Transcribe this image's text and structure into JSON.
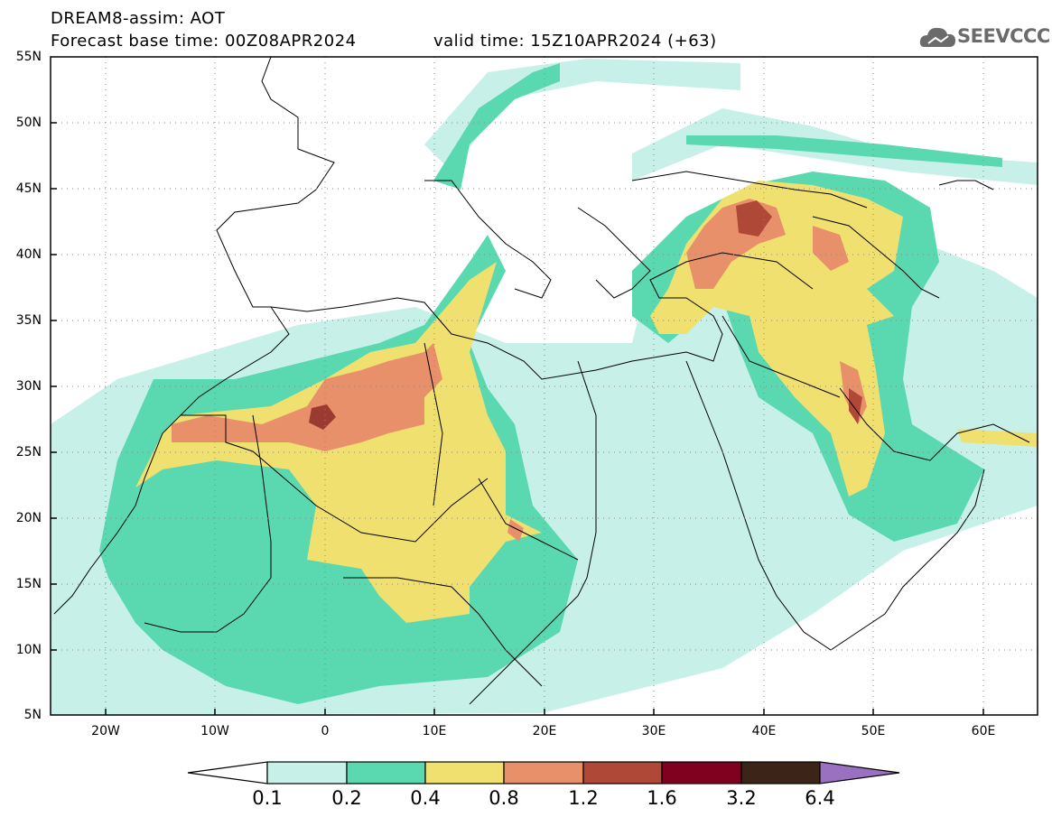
{
  "header": {
    "title_line1": "DREAM8-assim: AOT",
    "base_time": "Forecast base time: 00Z08APR2024",
    "valid_time": "valid time: 15Z10APR2024 (+63)"
  },
  "logo": {
    "text": "SEEVCCC",
    "icon": "cloud-icon"
  },
  "map": {
    "lat_labels": [
      "55N",
      "50N",
      "45N",
      "40N",
      "35N",
      "30N",
      "25N",
      "20N",
      "15N",
      "10N",
      "5N"
    ],
    "lon_labels": [
      "20W",
      "10W",
      "0",
      "10E",
      "20E",
      "30E",
      "40E",
      "50E",
      "60E"
    ],
    "lon_range": [
      -25,
      65
    ],
    "lat_range": [
      5,
      55
    ],
    "gridlines": "dotted"
  },
  "colorbar": {
    "labels": [
      "0.1",
      "0.2",
      "0.4",
      "0.8",
      "1.2",
      "1.6",
      "3.2",
      "6.4"
    ],
    "colors": [
      "#c6f0e8",
      "#5ad8b0",
      "#f0e070",
      "#e8906a",
      "#b04838",
      "#800020",
      "#3c2418",
      "#9a70c0"
    ]
  },
  "palette": {
    "light": "#c6f0e8",
    "green": "#5ad8b0",
    "yellow": "#f0e070",
    "orange": "#e8906a",
    "red": "#b04838",
    "dark": "#7a2a22"
  }
}
